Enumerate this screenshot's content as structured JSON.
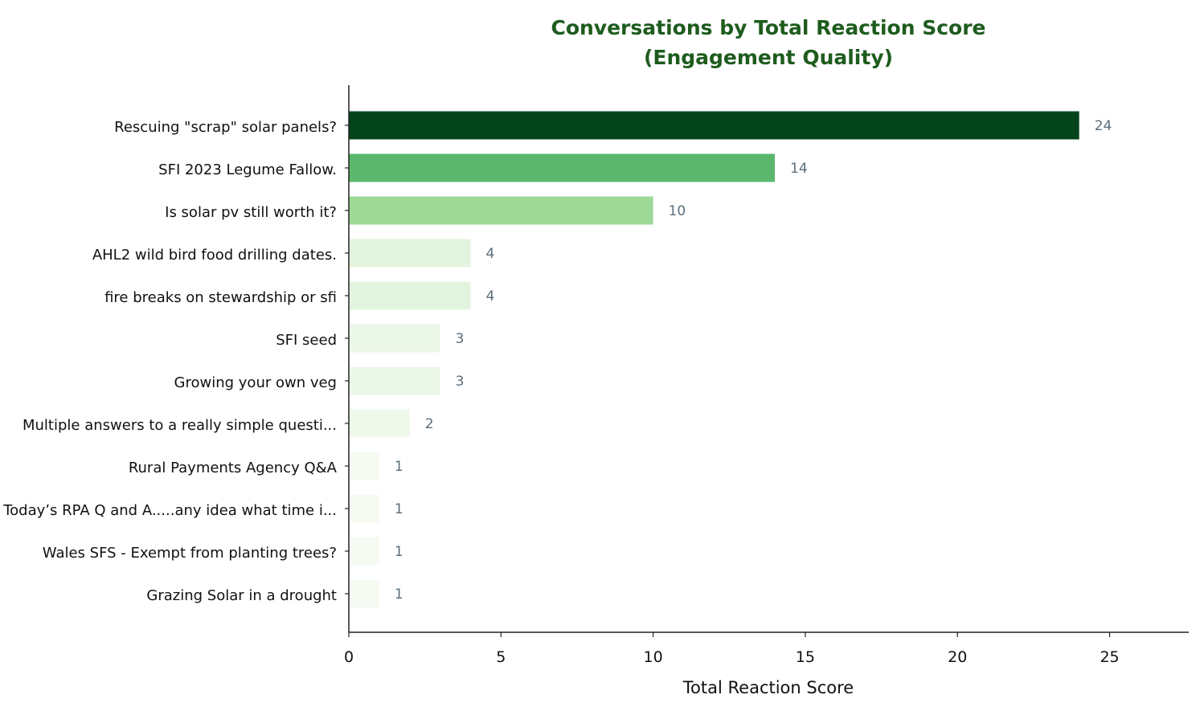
{
  "chart_data": {
    "type": "bar",
    "orientation": "horizontal",
    "title": "Conversations by Total Reaction Score",
    "subtitle": "(Engagement Quality)",
    "xlabel": "Total Reaction Score",
    "ylabel": "",
    "xlim": [
      0,
      27.6
    ],
    "xticks": [
      0,
      5,
      10,
      15,
      20,
      25
    ],
    "grid": false,
    "categories": [
      "Rescuing \"scrap\" solar panels?",
      "SFI 2023 Legume Fallow.",
      "Is solar pv still worth it?",
      "AHL2 wild bird food drilling dates.",
      "fire breaks on stewardship or sfi",
      "SFI seed",
      "Growing your own veg",
      "Multiple answers to a really simple questi...",
      "Rural Payments Agency Q&A",
      "Today’s RPA Q and A.....any idea what time i...",
      "Wales SFS - Exempt from planting trees?",
      "Grazing Solar in a drought"
    ],
    "values": [
      24,
      14,
      10,
      4,
      4,
      3,
      3,
      2,
      1,
      1,
      1,
      1
    ],
    "colors": [
      "#03441d",
      "#5ab76b",
      "#9dd897",
      "#e2f4de",
      "#e2f4de",
      "#ebf7e8",
      "#ebf7e8",
      "#eef8eb",
      "#f5fbf3",
      "#f5fbf3",
      "#f5fbf3",
      "#f5fbf3"
    ],
    "title_color": "#1e5c1e",
    "value_label_color": "#5c6e7a"
  }
}
